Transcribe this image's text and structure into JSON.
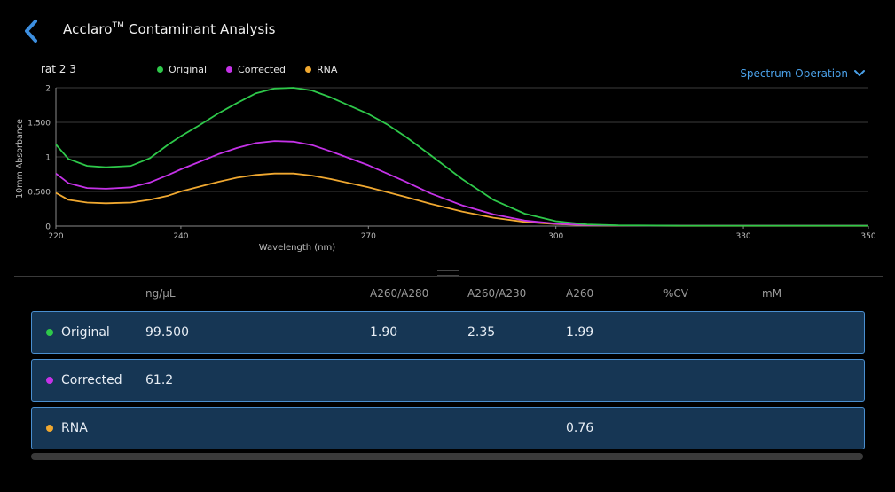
{
  "header": {
    "title_main": "Acclaro",
    "title_sup": "TM",
    "title_rest": " Contaminant Analysis"
  },
  "sample_name": "rat 2 3",
  "legend": [
    {
      "label": "Original",
      "color": "#2ec84a"
    },
    {
      "label": "Corrected",
      "color": "#c532e8"
    },
    {
      "label": "RNA",
      "color": "#f0a830"
    }
  ],
  "spectrum_operation": {
    "label": "Spectrum Operation",
    "color": "#4aa0e8"
  },
  "chart_data": {
    "type": "line",
    "xlabel": "Wavelength (nm)",
    "ylabel": "10mm Absorbance",
    "xlim": [
      220,
      350
    ],
    "ylim": [
      0,
      2
    ],
    "xticks": [
      220,
      240,
      270,
      300,
      330,
      350
    ],
    "yticks": [
      0,
      0.5,
      1,
      1.5,
      2
    ],
    "ytick_labels": [
      "0",
      "0.500",
      "1",
      "1.500",
      "2"
    ],
    "grid": "horizontal",
    "series": [
      {
        "name": "Original",
        "color": "#2ec84a",
        "x": [
          220,
          222,
          225,
          228,
          232,
          235,
          238,
          240,
          243,
          246,
          249,
          252,
          255,
          258,
          261,
          264,
          267,
          270,
          273,
          276,
          280,
          285,
          290,
          295,
          300,
          305,
          310,
          320,
          330,
          340,
          350
        ],
        "y": [
          1.18,
          0.97,
          0.87,
          0.85,
          0.87,
          0.98,
          1.18,
          1.3,
          1.46,
          1.63,
          1.78,
          1.92,
          1.99,
          2.0,
          1.96,
          1.86,
          1.74,
          1.62,
          1.47,
          1.29,
          1.02,
          0.68,
          0.38,
          0.18,
          0.07,
          0.025,
          0.01,
          0.005,
          0.005,
          0.005,
          0.005
        ]
      },
      {
        "name": "Corrected",
        "color": "#c532e8",
        "x": [
          220,
          222,
          225,
          228,
          232,
          235,
          238,
          240,
          243,
          246,
          249,
          252,
          255,
          258,
          261,
          264,
          267,
          270,
          273,
          276,
          280,
          285,
          290,
          295,
          300,
          305,
          310,
          320,
          330,
          340,
          350
        ],
        "y": [
          0.76,
          0.62,
          0.55,
          0.54,
          0.56,
          0.63,
          0.74,
          0.82,
          0.93,
          1.04,
          1.13,
          1.2,
          1.23,
          1.22,
          1.17,
          1.08,
          0.98,
          0.88,
          0.76,
          0.64,
          0.47,
          0.3,
          0.17,
          0.08,
          0.035,
          0.015,
          0.008,
          0.005,
          0.005,
          0.005,
          0.005
        ]
      },
      {
        "name": "RNA",
        "color": "#f0a830",
        "x": [
          220,
          222,
          225,
          228,
          232,
          235,
          238,
          240,
          243,
          246,
          249,
          252,
          255,
          258,
          261,
          264,
          267,
          270,
          273,
          276,
          280,
          285,
          290,
          295,
          300,
          305,
          310,
          320,
          330,
          340,
          350
        ],
        "y": [
          0.48,
          0.38,
          0.34,
          0.33,
          0.34,
          0.38,
          0.44,
          0.5,
          0.57,
          0.64,
          0.7,
          0.74,
          0.76,
          0.76,
          0.73,
          0.68,
          0.62,
          0.56,
          0.49,
          0.42,
          0.32,
          0.21,
          0.12,
          0.06,
          0.03,
          0.012,
          0.006,
          0.004,
          0.004,
          0.004,
          0.004
        ]
      }
    ]
  },
  "table": {
    "columns": [
      "ng/µL",
      "A260/A280",
      "A260/A230",
      "A260",
      "%CV",
      "mM"
    ],
    "rows": [
      {
        "name": "Original",
        "color": "#2ec84a",
        "ng": "99.500",
        "a260_280": "1.90",
        "a260_230": "2.35",
        "a260": "1.99"
      },
      {
        "name": "Corrected",
        "color": "#c532e8",
        "ng": "61.2",
        "a260_280": "",
        "a260_230": "",
        "a260": ""
      },
      {
        "name": "RNA",
        "color": "#f0a830",
        "ng": "",
        "a260_280": "",
        "a260_230": "",
        "a260": "0.76"
      }
    ]
  }
}
